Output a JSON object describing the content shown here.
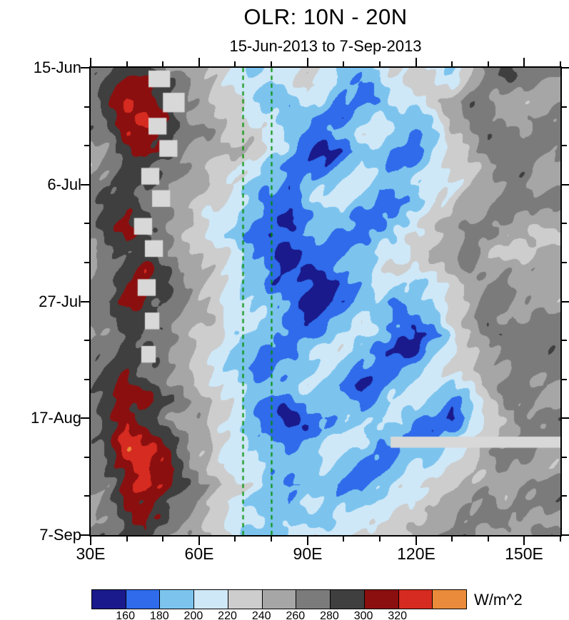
{
  "header": {
    "title": "OLR: 10N - 20N",
    "subtitle": "15-Jun-2013 to 7-Sep-2013"
  },
  "axes": {
    "x": {
      "range": [
        30,
        160
      ],
      "major_lons": [
        30,
        60,
        90,
        120,
        150
      ],
      "major_labels": [
        "30E",
        "60E",
        "90E",
        "120E",
        "150E"
      ],
      "minor_lons": [
        40,
        50,
        70,
        80,
        100,
        110,
        130,
        140,
        160
      ]
    },
    "y": {
      "range_days": [
        0,
        84
      ],
      "major_days": [
        0,
        21,
        42,
        63,
        84
      ],
      "major_labels": [
        "15-Jun",
        "6-Jul",
        "27-Jul",
        "17-Aug",
        "7-Sep"
      ],
      "minor_days": [
        7,
        14,
        28,
        35,
        49,
        56,
        70,
        77
      ]
    }
  },
  "colorbar": {
    "units": "W/m^2",
    "tick_labels": [
      "160",
      "180",
      "200",
      "220",
      "240",
      "260",
      "280",
      "300",
      "320"
    ],
    "colors": [
      "#1a1a8c",
      "#2f6bea",
      "#7cc4ee",
      "#cfe8f8",
      "#cdcdcd",
      "#a6a6a6",
      "#7b7b7b",
      "#3f3f3f",
      "#8b0f0f",
      "#d62b20",
      "#e98b3a"
    ]
  },
  "chart_data": {
    "type": "heatmap",
    "title": "OLR: 10N - 20N",
    "subtitle": "15-Jun-2013 to 7-Sep-2013",
    "units": "W/m^2",
    "x_axis": "longitude_degE",
    "y_axis": "time",
    "x_range": [
      30,
      160
    ],
    "y_range_days": [
      0,
      84
    ],
    "y_time": {
      "start": "15-Jun-2013",
      "end": "7-Sep-2013",
      "step_days": 3,
      "count": 29
    },
    "x_lon": {
      "start": 30,
      "step": 5,
      "count": 26
    },
    "levels": [
      160,
      180,
      200,
      220,
      240,
      260,
      280,
      300,
      320,
      340
    ],
    "level_colors": [
      "#1a1a8c",
      "#2f6bea",
      "#7cc4ee",
      "#cfe8f8",
      "#cdcdcd",
      "#a6a6a6",
      "#7b7b7b",
      "#3f3f3f",
      "#8b0f0f",
      "#d62b20",
      "#e98b3a"
    ],
    "value_encoding": "each char c in grid_rows is a band index i (0-9,a); OLR value = 150 + 20*i W/m^2",
    "grid_rows": [
      "66776554323343223443246766",
      "67887654332343212344356665",
      "67987654432232112334566555",
      "67898655433221123223566556",
      "66887665443211233212456656",
      "56787655543210122113456666",
      "56776654432111232123445665",
      "66776554322122332233345665",
      "67766544321123321123455666",
      "67876543321012211234556655",
      "67876543211122112344566554",
      "56776544321011123345565445",
      "56787554321001223434565555",
      "66887654321110123323456655",
      "67876654322100122123456655",
      "66776554332101232112456556",
      "56766544322112332101356666",
      "66776543221123321002345666",
      "67766543211223211123445566",
      "67876543322232101233235665",
      "67887654321122212332124665",
      "67876554321011223321024566",
      "67987654321112332211234566",
      "67998654322123321122345665",
      "67898754332223211233445655",
      "66898765432122112334455556",
      "56887654322232223344556566",
      "56787654332222333445566655",
      "66776554322333344455665556"
    ],
    "missing_color": "#d8d8d8",
    "missing_rects": [
      [
        46,
        52,
        0.5,
        3.5
      ],
      [
        50,
        56,
        4.5,
        8
      ],
      [
        46,
        51,
        9,
        12
      ],
      [
        49,
        54,
        13,
        16
      ],
      [
        44,
        49,
        18,
        21
      ],
      [
        47,
        52,
        22,
        25
      ],
      [
        42,
        47,
        27,
        30
      ],
      [
        45,
        50,
        31,
        34
      ],
      [
        43,
        48,
        38,
        41
      ],
      [
        45,
        49,
        44,
        47
      ],
      [
        44,
        48,
        50,
        53
      ],
      [
        113,
        160,
        66.3,
        68.3
      ]
    ],
    "reference_lines_lon": [
      72,
      80
    ],
    "reference_line_color": "#008f00"
  }
}
